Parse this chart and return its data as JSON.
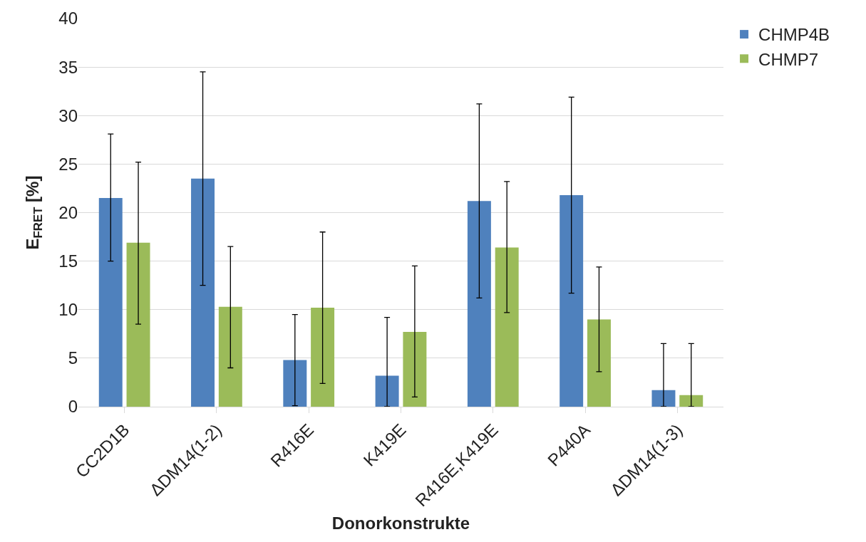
{
  "chart_data": {
    "type": "bar",
    "xlabel": "Donorkonstrukte",
    "ylabel": "E$_{FRET}$ [%]",
    "categories": [
      "CC2D1B",
      "ΔDM14(1-2)",
      "R416E",
      "K419E",
      "R416E,K419E",
      "P440A",
      "ΔDM14(1-3)"
    ],
    "series": [
      {
        "name": "CHMP4B",
        "color": "#4f81bd",
        "values": [
          21.5,
          23.5,
          4.8,
          3.2,
          21.2,
          21.8,
          1.7
        ],
        "errors": [
          [
            15.0,
            28.1
          ],
          [
            12.5,
            34.5
          ],
          [
            0.1,
            9.5
          ],
          [
            0,
            9.2
          ],
          [
            11.2,
            31.2
          ],
          [
            11.7,
            31.9
          ],
          [
            0,
            6.5
          ]
        ]
      },
      {
        "name": "CHMP7",
        "color": "#9bbb59",
        "values": [
          16.9,
          10.3,
          10.2,
          7.7,
          16.4,
          9.0,
          1.2
        ],
        "errors": [
          [
            8.5,
            25.2
          ],
          [
            4.0,
            16.5
          ],
          [
            2.4,
            18.0
          ],
          [
            1.0,
            14.5
          ],
          [
            9.7,
            23.2
          ],
          [
            3.6,
            14.4
          ],
          [
            0,
            6.5
          ]
        ]
      }
    ],
    "ylim": [
      0,
      40
    ],
    "yticks": [
      0,
      5,
      10,
      15,
      20,
      25,
      30,
      35,
      40
    ],
    "grid": "y",
    "legend": "top right"
  }
}
